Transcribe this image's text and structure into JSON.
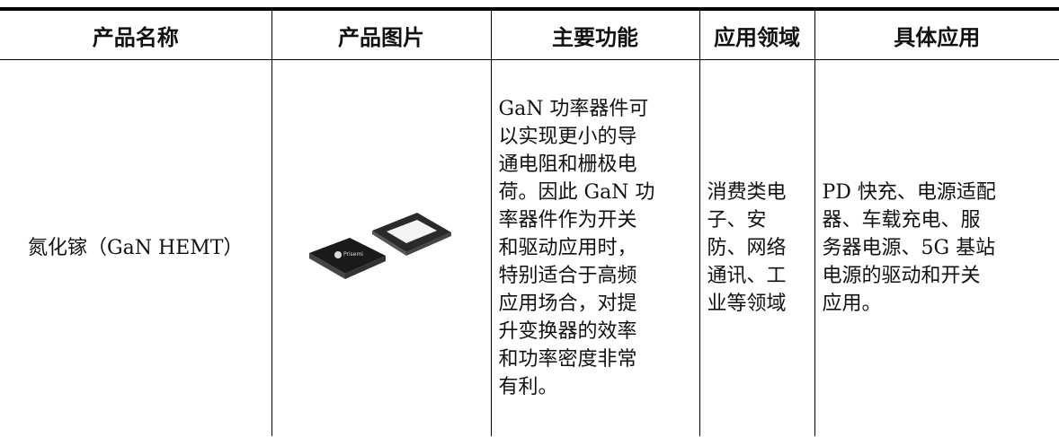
{
  "table": {
    "header": [
      "产品名称",
      "产品图片",
      "主要功能",
      "应用领域",
      "具体应用"
    ],
    "rows": [
      [
        [
          "氮化镓（GaN HEMT）"
        ],
        [],
        [
          "GaN 功率器件可",
          "以实现更小的导",
          "通电阻和栅极电",
          "荷。因此 GaN 功",
          "率器件作为开关",
          "和驱动应用时，",
          "特别适合于高频",
          "应用场合，对提",
          "升变换器的效率",
          "和功率密度非常",
          "有利。"
        ],
        [
          "消费类电",
          "子、安",
          "防、网络",
          "通讯、工",
          "业等领域"
        ],
        [
          "PD 快充、电源适配",
          "器、车载充电、服",
          "务器电源、5G 基站",
          "电源的驱动和开关",
          "应用。"
        ]
      ]
    ],
    "chip_label": "Prisemi"
  }
}
